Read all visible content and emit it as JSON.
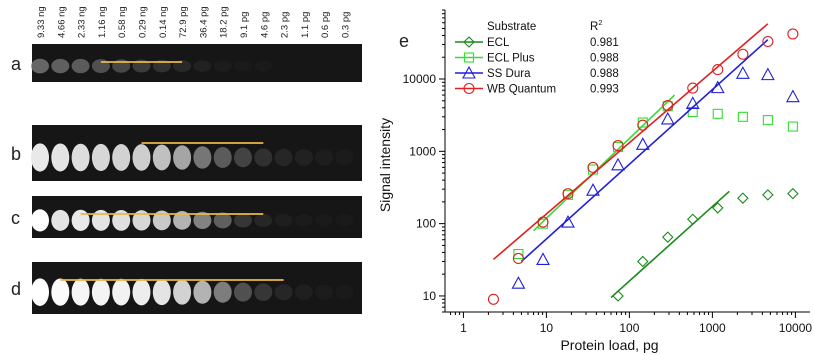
{
  "blot": {
    "loads": [
      "9.33 ng",
      "4.66 ng",
      "2.33 ng",
      "1.16 ng",
      "0.58 ng",
      "0.29 ng",
      "0.14 ng",
      "72.9 pg",
      "36.4 pg",
      "18.2 pg",
      "9.1 pg",
      "4.6 pg",
      "2.3 pg",
      "1.1 pg",
      "0.6 pg",
      "0.3 pg"
    ],
    "panels": [
      {
        "label": "a",
        "line_start_lane": 4,
        "line_end_lane": 8,
        "intensities": [
          0.42,
          0.4,
          0.38,
          0.34,
          0.3,
          0.25,
          0.2,
          0.14,
          0.08,
          0.04,
          0.02,
          0.01,
          0,
          0,
          0,
          0
        ]
      },
      {
        "label": "b",
        "line_start_lane": 6,
        "line_end_lane": 12,
        "intensities": [
          0.9,
          0.88,
          0.85,
          0.82,
          0.8,
          0.78,
          0.72,
          0.62,
          0.48,
          0.38,
          0.28,
          0.18,
          0.12,
          0.08,
          0.05,
          0.03
        ]
      },
      {
        "label": "c",
        "line_start_lane": 3,
        "line_end_lane": 12,
        "intensities": [
          1.0,
          0.88,
          0.9,
          0.88,
          0.86,
          0.82,
          0.76,
          0.66,
          0.52,
          0.4,
          0.22,
          0.12,
          0.06,
          0.03,
          0.02,
          0.01
        ]
      },
      {
        "label": "d",
        "line_start_lane": 2,
        "line_end_lane": 13,
        "intensities": [
          1.0,
          0.98,
          0.96,
          0.95,
          0.94,
          0.92,
          0.88,
          0.8,
          0.66,
          0.5,
          0.34,
          0.22,
          0.12,
          0.07,
          0.04,
          0.02
        ]
      }
    ]
  },
  "chart_data": {
    "type": "scatter",
    "panel_label": "e",
    "xlabel": "Protein load, pg",
    "ylabel": "Signal intensity",
    "xscale": "log",
    "yscale": "log",
    "xlim": [
      0.6,
      15000
    ],
    "ylim": [
      6,
      90000
    ],
    "xticks": [
      1,
      10,
      100,
      1000,
      10000
    ],
    "yticks": [
      10,
      100,
      1000,
      10000
    ],
    "legend": {
      "header": "Substrate",
      "r2_header": "R",
      "r2_header_sup": "2",
      "placement": "top-left"
    },
    "series": [
      {
        "name": "ECL",
        "r2": "0.981",
        "color": "#1a8a1a",
        "marker": "diamond",
        "points": [
          [
            72.9,
            10
          ],
          [
            145,
            30
          ],
          [
            290,
            65
          ],
          [
            580,
            115
          ],
          [
            1160,
            165
          ],
          [
            2330,
            225
          ],
          [
            4660,
            250
          ],
          [
            9330,
            260
          ]
        ],
        "fit": [
          [
            60,
            9.5
          ],
          [
            1600,
            280
          ]
        ]
      },
      {
        "name": "ECL Plus",
        "r2": "0.988",
        "color": "#33dd33",
        "marker": "square",
        "points": [
          [
            4.6,
            38
          ],
          [
            9.1,
            100
          ],
          [
            18.2,
            250
          ],
          [
            36.4,
            560
          ],
          [
            72.9,
            1150
          ],
          [
            145,
            2500
          ],
          [
            290,
            4200
          ],
          [
            580,
            3500
          ],
          [
            1160,
            3300
          ],
          [
            2330,
            3000
          ],
          [
            4660,
            2700
          ],
          [
            9330,
            2200
          ]
        ],
        "fit": [
          [
            7,
            80
          ],
          [
            350,
            6000
          ]
        ]
      },
      {
        "name": "SS Dura",
        "r2": "0.988",
        "color": "#1f1fd6",
        "marker": "triangle",
        "points": [
          [
            4.6,
            15
          ],
          [
            9.1,
            32
          ],
          [
            18.2,
            105
          ],
          [
            36.4,
            290
          ],
          [
            72.9,
            650
          ],
          [
            145,
            1250
          ],
          [
            290,
            2800
          ],
          [
            580,
            4600
          ],
          [
            1160,
            7600
          ],
          [
            2330,
            12000
          ],
          [
            4660,
            11500
          ],
          [
            9330,
            5700
          ]
        ],
        "fit": [
          [
            5,
            30
          ],
          [
            4660,
            35000
          ]
        ]
      },
      {
        "name": "WB Quantum",
        "r2": "0.993",
        "color": "#e02020",
        "marker": "circle",
        "points": [
          [
            2.3,
            9
          ],
          [
            4.6,
            33
          ],
          [
            9.1,
            105
          ],
          [
            18.2,
            260
          ],
          [
            36.4,
            600
          ],
          [
            72.9,
            1200
          ],
          [
            145,
            2300
          ],
          [
            290,
            4300
          ],
          [
            580,
            7500
          ],
          [
            1160,
            13500
          ],
          [
            2330,
            22000
          ],
          [
            4660,
            33000
          ],
          [
            9330,
            42000
          ]
        ],
        "fit": [
          [
            2.3,
            32
          ],
          [
            4660,
            58000
          ]
        ]
      }
    ]
  }
}
